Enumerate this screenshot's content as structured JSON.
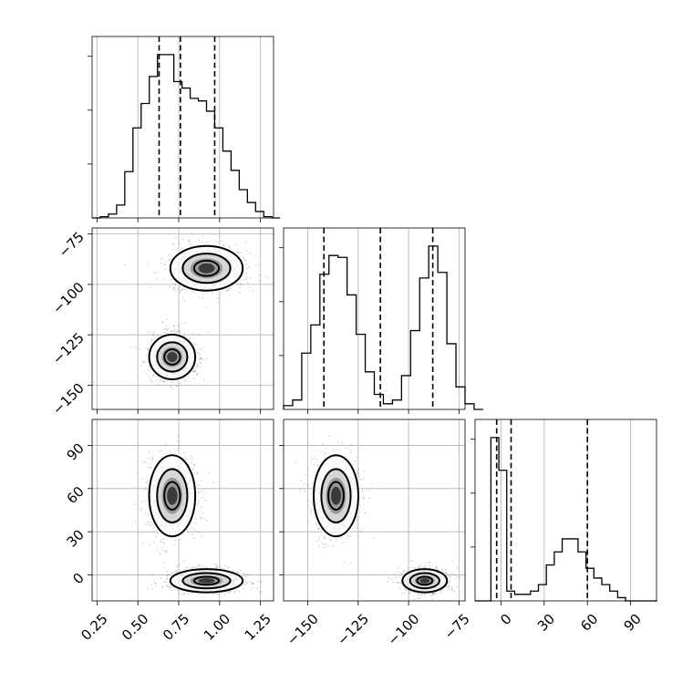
{
  "chart_data": {
    "type": "corner",
    "parameters": [
      "p0",
      "p1",
      "p2"
    ],
    "ranges": {
      "p0": [
        0.22,
        1.33
      ],
      "p1": [
        -162,
        -72
      ],
      "p2": [
        -18,
        108
      ]
    },
    "ticks": {
      "p0": {
        "values": [
          0.25,
          0.5,
          0.75,
          1.0,
          1.25
        ],
        "labels": [
          "0.25",
          "0.50",
          "0.75",
          "1.00",
          "1.25"
        ]
      },
      "p1": {
        "values": [
          -150,
          -125,
          -100,
          -75
        ],
        "labels": [
          "−150",
          "−125",
          "−100",
          "−75"
        ]
      },
      "p2": {
        "values": [
          0,
          30,
          60,
          90
        ],
        "labels": [
          "0",
          "30",
          "60",
          "90"
        ]
      }
    },
    "quantiles": {
      "p0": [
        0.63,
        0.76,
        0.97
      ],
      "p1": [
        -142,
        -114,
        -88
      ],
      "p2": [
        -3,
        7,
        60
      ]
    },
    "histograms": {
      "p0": {
        "bin_width": 0.05,
        "bins_from": 0.22,
        "counts": [
          0,
          1,
          3,
          10,
          36,
          70,
          89,
          110,
          127,
          127,
          106,
          101,
          93,
          91,
          83,
          70,
          52,
          37,
          22,
          12,
          5,
          1,
          0
        ]
      },
      "p1": {
        "bin_width": 4.5,
        "bins_from": -162,
        "counts": [
          2,
          5,
          30,
          45,
          72,
          82,
          81,
          61,
          40,
          20,
          8,
          3,
          5,
          18,
          42,
          70,
          87,
          73,
          35,
          12,
          3,
          0
        ]
      },
      "p2": {
        "bin_width": 5.5,
        "bins_from": -18,
        "counts": [
          0,
          0,
          50,
          40,
          3,
          2,
          2,
          3,
          5,
          11,
          15,
          19,
          19,
          15,
          10,
          7,
          5,
          3,
          1,
          0,
          0,
          0,
          0
        ]
      }
    },
    "modes": [
      {
        "weight": 0.5,
        "p0": 0.71,
        "p0_sd": 0.07,
        "p1": -136,
        "p1_sd": 5.5,
        "p2": 55,
        "p2_sd": 14
      },
      {
        "weight": 0.5,
        "p0": 0.92,
        "p0_sd": 0.11,
        "p1": -92,
        "p1_sd": 5.5,
        "p2": -4,
        "p2_sd": 4
      }
    ],
    "levels": [
      0.39,
      0.86,
      0.99
    ],
    "grid": true
  }
}
